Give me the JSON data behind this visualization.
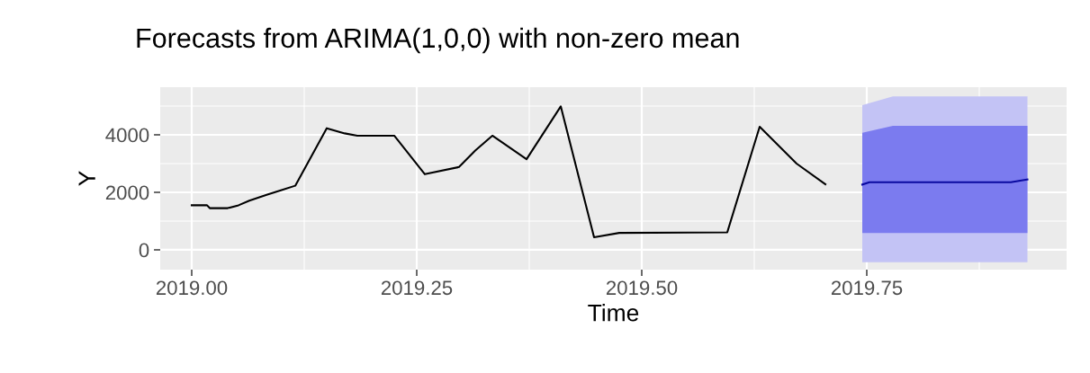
{
  "chart_data": {
    "type": "line",
    "title": "Forecasts from ARIMA(1,0,0) with non-zero mean",
    "xlabel": "Time",
    "ylabel": "Y",
    "series": [
      {
        "type": "area",
        "color": "#c3c3f5",
        "x": [
          2019.745,
          2019.779,
          2019.9285
        ],
        "values": [
          null,
          null,
          null
        ],
        "lower": [
          -434,
          -434,
          -434
        ],
        "upper": [
          5034,
          5334,
          5334
        ]
      },
      {
        "type": "area",
        "color": "#7b7bef",
        "x": [
          2019.745,
          2019.779,
          2019.9285
        ],
        "values": [
          null,
          null,
          null
        ],
        "lower": [
          588,
          588,
          588
        ],
        "upper": [
          4072,
          4312,
          4312
        ]
      },
      {
        "color": "#000000",
        "x": [
          2019.0,
          2019.017,
          2019.02,
          2019.04,
          2019.052,
          2019.064,
          2019.084,
          2019.099,
          2019.115,
          2019.15,
          2019.17,
          2019.184,
          2019.225,
          2019.259,
          2019.297,
          2019.315,
          2019.334,
          2019.372,
          2019.41,
          2019.447,
          2019.475,
          2019.595,
          2019.631,
          2019.672,
          2019.704
        ],
        "values": [
          1550,
          1550,
          1450,
          1450,
          1550,
          1710,
          1920,
          2070,
          2230,
          4230,
          4050,
          3970,
          3970,
          2630,
          2880,
          3450,
          3970,
          3150,
          4990,
          440,
          590,
          610,
          4280,
          3000,
          2280
        ]
      },
      {
        "type": "line",
        "color": "#0a0aa0",
        "x": [
          2019.745,
          2019.753,
          2019.91,
          2019.9285
        ],
        "values": [
          2270,
          2350,
          2350,
          2450
        ]
      }
    ],
    "xlim": [
      2018.965,
      2019.972
    ],
    "ylim": [
      -688,
      5656
    ],
    "xticks": [
      {
        "value": 2019.0,
        "label": "2019.00"
      },
      {
        "value": 2019.25,
        "label": "2019.25"
      },
      {
        "value": 2019.5,
        "label": "2019.50"
      },
      {
        "value": 2019.75,
        "label": "2019.75"
      }
    ],
    "yticks": [
      0,
      2000,
      4000
    ],
    "grid": true,
    "legend": false
  }
}
